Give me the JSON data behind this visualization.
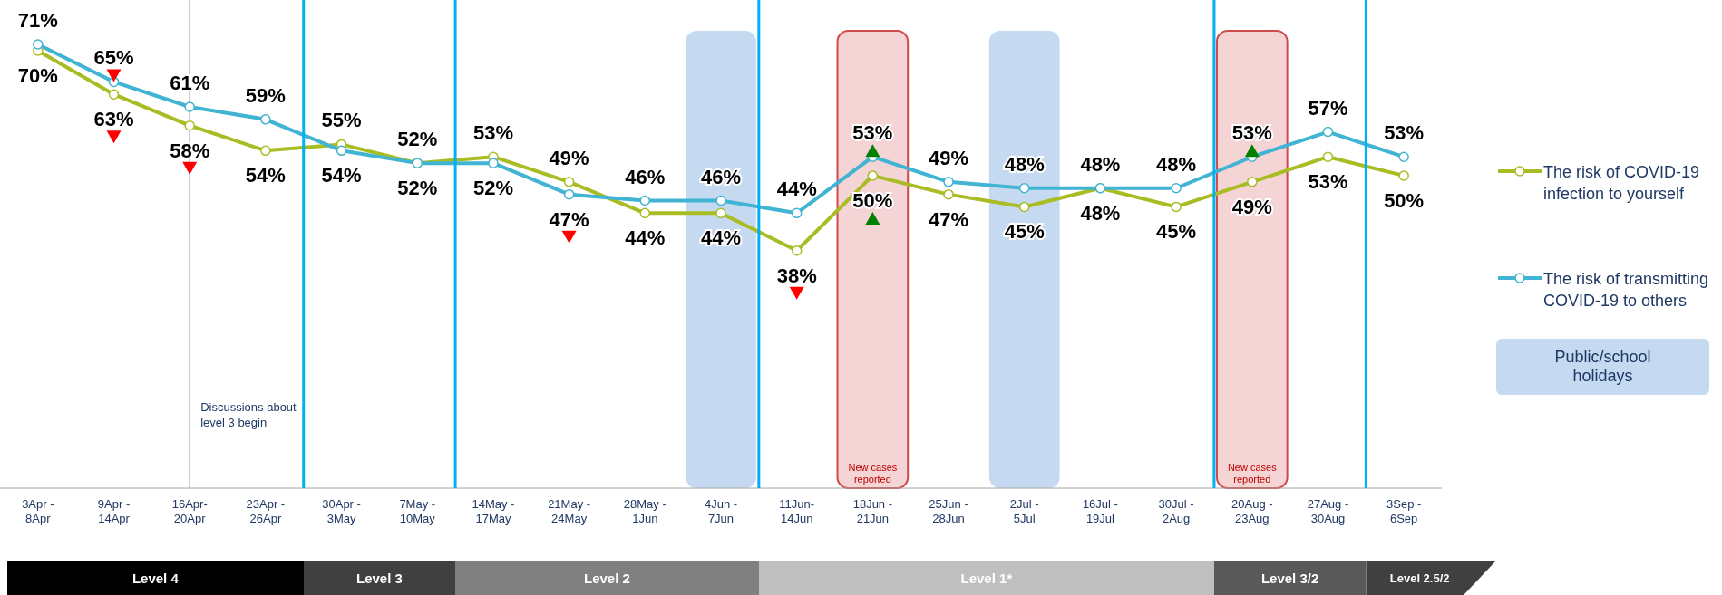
{
  "chart_data": {
    "type": "line",
    "categories": [
      "3Apr -\n8Apr",
      "9Apr -\n14Apr",
      "16Apr-\n20Apr",
      "23Apr -\n26Apr",
      "30Apr -\n3May",
      "7May -\n10May",
      "14May -\n17May",
      "21May -\n24May",
      "28May -\n1Jun",
      "4Jun -\n7Jun",
      "11Jun-\n14Jun",
      "18Jun -\n21Jun",
      "25Jun -\n28Jun",
      "2Jul -\n5Jul",
      "16Jul -\n19Jul",
      "30Jul -\n2Aug",
      "20Aug -\n23Aug",
      "27Aug -\n30Aug",
      "3Sep -\n6Sep"
    ],
    "series": [
      {
        "name": "The risk of COVID-19 infection to yourself",
        "color": "#a9bc23",
        "values": [
          70,
          63,
          58,
          54,
          55,
          52,
          53,
          49,
          44,
          44,
          38,
          50,
          47,
          45,
          48,
          45,
          49,
          53,
          50
        ],
        "value_labels": [
          "70%",
          "63%",
          "58%",
          "54%",
          "55%",
          "52%",
          "53%",
          "49%",
          "44%",
          "44%",
          "38%",
          "50%",
          "47%",
          "45%",
          "48%",
          "45%",
          "49%",
          "53%",
          "50%"
        ]
      },
      {
        "name": "The risk of transmitting COVID-19 to others",
        "color": "#41b3d3",
        "values": [
          71,
          65,
          61,
          59,
          54,
          52,
          52,
          47,
          46,
          46,
          44,
          53,
          49,
          48,
          48,
          48,
          53,
          57,
          53
        ],
        "value_labels": [
          "71%",
          "65%",
          "61%",
          "59%",
          "54%",
          "52%",
          "52%",
          "47%",
          "46%",
          "46%",
          "44%",
          "53%",
          "49%",
          "48%",
          "48%",
          "48%",
          "53%",
          "57%",
          "53%"
        ]
      }
    ],
    "tick_labels": "x",
    "marker": "circle",
    "legend": "right",
    "bands": [
      {
        "axis": "x",
        "from": "4Jun -\n7Jun",
        "to": "4Jun -\n7Jun",
        "color": "#c5daf0"
      },
      {
        "axis": "x",
        "from": "18Jun -\n21Jun",
        "to": "18Jun -\n21Jun",
        "label": "New cases reported",
        "color": "#f4d4d4"
      },
      {
        "axis": "x",
        "from": "2Jul -\n5Jul",
        "to": "2Jul -\n5Jul",
        "color": "#c5daf0"
      },
      {
        "axis": "x",
        "from": "20Aug -\n23Aug",
        "to": "20Aug -\n23Aug",
        "label": "New cases reported",
        "color": "#f4d4d4"
      }
    ],
    "ref_lines": [
      {
        "axis": "x",
        "value": "16Apr-\n20Apr",
        "label": "Discussions about level 3 begin",
        "color": "#2f5597"
      }
    ],
    "annotations": [
      "Public/school holidays",
      "Level 4",
      "Level 3",
      "Level 2",
      "Level 1*",
      "Level 3/2",
      "Level 2.5/2"
    ]
  }
}
